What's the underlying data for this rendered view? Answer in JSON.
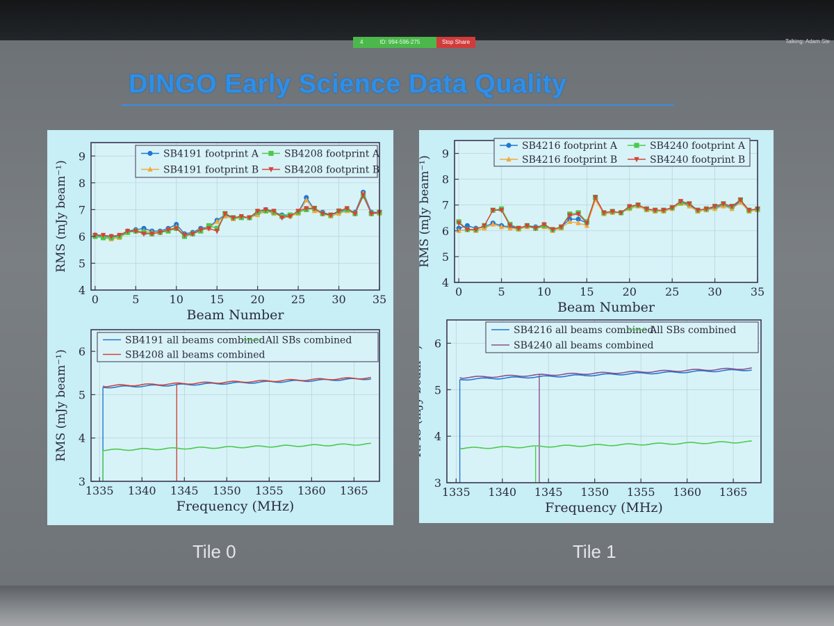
{
  "zoom": {
    "meeting_id": "ID: 994-596-275",
    "stop_share": "Stop Share",
    "talking": "Talking: Adam Ste",
    "indicator": "4"
  },
  "slide": {
    "title": "DINGO Early Science Data Quality",
    "tile_labels": [
      "Tile 0",
      "Tile 1"
    ]
  },
  "colors": {
    "blue": "#1f77d4",
    "orange": "#f2a93b",
    "green": "#4cc94c",
    "red": "#d4433a",
    "purple": "#8a4f8a"
  },
  "chart_data": [
    {
      "id": "tile0-beam",
      "type": "line",
      "xlabel": "Beam Number",
      "ylabel": "RMS (mJy beam⁻¹)",
      "xlim": [
        -0.5,
        35
      ],
      "ylim": [
        4,
        9.5
      ],
      "xticks": [
        0,
        5,
        10,
        15,
        20,
        25,
        30,
        35
      ],
      "yticks": [
        4,
        5,
        6,
        7,
        8,
        9
      ],
      "legend_position": "top-right",
      "x": [
        0,
        1,
        2,
        3,
        4,
        5,
        6,
        7,
        8,
        9,
        10,
        11,
        12,
        13,
        14,
        15,
        16,
        17,
        18,
        19,
        20,
        21,
        22,
        23,
        24,
        25,
        26,
        27,
        28,
        29,
        30,
        31,
        32,
        33,
        34,
        35
      ],
      "series": [
        {
          "name": "SB4191 footprint A",
          "color": "#1f77d4",
          "marker": "circle",
          "values": [
            6.05,
            6.0,
            6.0,
            6.0,
            6.2,
            6.25,
            6.3,
            6.2,
            6.2,
            6.3,
            6.45,
            6.1,
            6.15,
            6.3,
            6.35,
            6.6,
            6.8,
            6.7,
            6.7,
            6.7,
            6.85,
            7.0,
            6.9,
            6.8,
            6.8,
            6.9,
            7.45,
            7.0,
            6.9,
            6.8,
            6.9,
            7.0,
            6.9,
            7.65,
            6.9,
            6.9
          ]
        },
        {
          "name": "SB4191 footprint B",
          "color": "#f2a93b",
          "marker": "triangle-up",
          "values": [
            6.0,
            5.95,
            5.9,
            5.95,
            6.15,
            6.2,
            6.2,
            6.15,
            6.15,
            6.25,
            6.35,
            6.05,
            6.1,
            6.25,
            6.3,
            6.55,
            6.75,
            6.65,
            6.7,
            6.7,
            6.8,
            6.95,
            6.85,
            6.75,
            6.75,
            6.85,
            7.35,
            6.95,
            6.85,
            6.75,
            6.85,
            6.95,
            6.85,
            7.6,
            6.85,
            6.85
          ]
        },
        {
          "name": "SB4208 footprint A",
          "color": "#4cc94c",
          "marker": "square",
          "values": [
            6.0,
            5.95,
            5.95,
            6.0,
            6.15,
            6.2,
            6.15,
            6.1,
            6.15,
            6.2,
            6.3,
            6.0,
            6.1,
            6.2,
            6.4,
            6.3,
            6.85,
            6.7,
            6.7,
            6.7,
            6.9,
            6.95,
            6.9,
            6.75,
            6.8,
            6.9,
            7.0,
            7.05,
            6.85,
            6.8,
            6.95,
            7.0,
            6.85,
            7.5,
            6.85,
            6.9
          ]
        },
        {
          "name": "SB4208 footprint B",
          "color": "#d4433a",
          "marker": "triangle-down",
          "values": [
            6.05,
            6.05,
            6.0,
            6.05,
            6.2,
            6.2,
            6.1,
            6.1,
            6.15,
            6.25,
            6.3,
            6.05,
            6.1,
            6.25,
            6.3,
            6.2,
            6.85,
            6.7,
            6.75,
            6.7,
            6.95,
            7.0,
            6.95,
            6.7,
            6.75,
            6.95,
            7.05,
            7.05,
            6.85,
            6.8,
            6.95,
            7.05,
            6.85,
            7.55,
            6.85,
            6.9
          ]
        }
      ]
    },
    {
      "id": "tile0-freq",
      "type": "line",
      "xlabel": "Frequency (MHz)",
      "ylabel": "RMS (mJy beam⁻¹)",
      "xlim": [
        1334,
        1368
      ],
      "ylim": [
        3,
        6.5
      ],
      "xticks": [
        1335,
        1340,
        1345,
        1350,
        1355,
        1360,
        1365
      ],
      "yticks": [
        3,
        4,
        5,
        6
      ],
      "legend_position": "top",
      "series": [
        {
          "name": "SB4191 all beams combined",
          "color": "#1f77d4",
          "start": [
            1335.4,
            5.17
          ],
          "end": [
            1367,
            5.37
          ],
          "drop_x": 1335.4
        },
        {
          "name": "SB4208 all beams combined",
          "color": "#d4433a",
          "start": [
            1335.4,
            5.2
          ],
          "end": [
            1367,
            5.39
          ],
          "drop_x": 1344.1
        },
        {
          "name": "All SBs combined",
          "color": "#4cc94c",
          "start": [
            1335.4,
            3.72
          ],
          "end": [
            1367,
            3.86
          ],
          "drop_x": 1335.4
        }
      ]
    },
    {
      "id": "tile1-beam",
      "type": "line",
      "xlabel": "Beam Number",
      "ylabel": "RMS (mJy beam⁻¹)",
      "xlim": [
        -0.5,
        35
      ],
      "ylim": [
        4,
        9.5
      ],
      "xticks": [
        0,
        5,
        10,
        15,
        20,
        25,
        30,
        35
      ],
      "yticks": [
        4,
        5,
        6,
        7,
        8,
        9
      ],
      "legend_position": "top-right",
      "x": [
        0,
        1,
        2,
        3,
        4,
        5,
        6,
        7,
        8,
        9,
        10,
        11,
        12,
        13,
        14,
        15,
        16,
        17,
        18,
        19,
        20,
        21,
        22,
        23,
        24,
        25,
        26,
        27,
        28,
        29,
        30,
        31,
        32,
        33,
        34,
        35
      ],
      "series": [
        {
          "name": "SB4216 footprint A",
          "color": "#1f77d4",
          "marker": "circle",
          "values": [
            6.1,
            6.2,
            6.1,
            6.15,
            6.3,
            6.2,
            6.15,
            6.1,
            6.2,
            6.15,
            6.2,
            6.05,
            6.15,
            6.45,
            6.45,
            6.3,
            7.25,
            6.7,
            6.75,
            6.7,
            6.9,
            7.0,
            6.85,
            6.8,
            6.8,
            6.9,
            7.1,
            7.0,
            6.8,
            6.85,
            6.9,
            7.0,
            6.9,
            7.15,
            6.8,
            6.85
          ]
        },
        {
          "name": "SB4216 footprint B",
          "color": "#f2a93b",
          "marker": "triangle-up",
          "values": [
            6.0,
            6.05,
            6.0,
            6.1,
            6.25,
            6.15,
            6.1,
            6.05,
            6.15,
            6.1,
            6.15,
            6.0,
            6.1,
            6.35,
            6.3,
            6.2,
            7.2,
            6.65,
            6.7,
            6.7,
            6.85,
            6.95,
            6.8,
            6.75,
            6.75,
            6.85,
            7.05,
            6.95,
            6.75,
            6.8,
            6.85,
            6.95,
            6.85,
            7.1,
            6.75,
            6.8
          ]
        },
        {
          "name": "SB4240 footprint A",
          "color": "#4cc94c",
          "marker": "square",
          "values": [
            6.35,
            6.05,
            6.05,
            6.2,
            6.8,
            6.85,
            6.25,
            6.1,
            6.2,
            6.1,
            6.2,
            6.05,
            6.15,
            6.65,
            6.7,
            6.35,
            7.3,
            6.7,
            6.75,
            6.7,
            6.9,
            7.0,
            6.85,
            6.8,
            6.8,
            6.9,
            7.1,
            7.05,
            6.8,
            6.85,
            6.95,
            7.05,
            6.95,
            7.2,
            6.8,
            6.85
          ]
        },
        {
          "name": "SB4240 footprint B",
          "color": "#d4433a",
          "marker": "triangle-down",
          "values": [
            6.3,
            6.05,
            6.05,
            6.2,
            6.8,
            6.8,
            6.2,
            6.1,
            6.2,
            6.1,
            6.25,
            6.05,
            6.15,
            6.6,
            6.65,
            6.3,
            7.3,
            6.7,
            6.75,
            6.7,
            6.95,
            7.0,
            6.85,
            6.8,
            6.8,
            6.9,
            7.15,
            7.05,
            6.8,
            6.85,
            6.95,
            7.05,
            6.95,
            7.2,
            6.8,
            6.85
          ]
        }
      ]
    },
    {
      "id": "tile1-freq",
      "type": "line",
      "xlabel": "Frequency (MHz)",
      "ylabel": "RMS (mJy beam⁻¹)",
      "xlim": [
        1334,
        1368
      ],
      "ylim": [
        3,
        6.5
      ],
      "xticks": [
        1335,
        1340,
        1345,
        1350,
        1355,
        1360,
        1365
      ],
      "yticks": [
        3,
        4,
        5,
        6
      ],
      "legend_position": "top",
      "series": [
        {
          "name": "SB4216 all beams combined",
          "color": "#1f77d4",
          "start": [
            1335.4,
            5.22
          ],
          "end": [
            1367,
            5.43
          ],
          "drop_x": 1335.4
        },
        {
          "name": "SB4240 all beams combined",
          "color": "#8a4f8a",
          "start": [
            1335.4,
            5.26
          ],
          "end": [
            1367,
            5.46
          ],
          "drop_x": 1344.0
        },
        {
          "name": "All SBs combined",
          "color": "#4cc94c",
          "start": [
            1335.4,
            3.74
          ],
          "end": [
            1367,
            3.88
          ],
          "drop_x": 1343.6
        }
      ]
    }
  ]
}
